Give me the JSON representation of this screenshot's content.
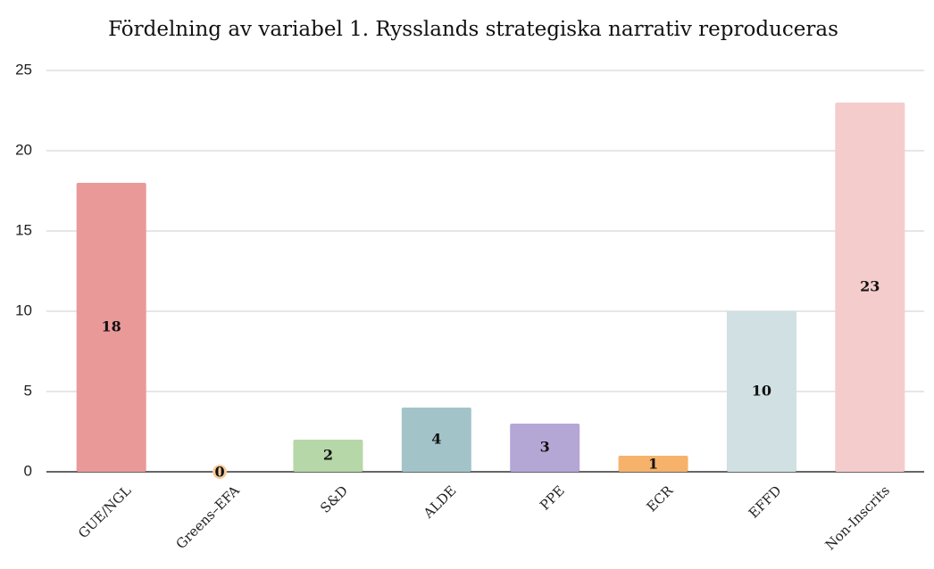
{
  "chart_data": {
    "type": "bar",
    "title": "Fördelning av variabel 1. Rysslands strategiska narrativ reproduceras",
    "categories": [
      "GUE/NGL",
      "Greens–EFA",
      "S&D",
      "ALDE",
      "PPE",
      "ECR",
      "EFFD",
      "Non-Inscrits"
    ],
    "values": [
      18,
      0,
      2,
      4,
      3,
      1,
      10,
      23
    ],
    "colors": [
      "#ea9999",
      "#f9cb9c",
      "#b6d7a8",
      "#a2c4c9",
      "#b4a7d6",
      "#f6b26b",
      "#d0e0e3",
      "#f4cccc"
    ],
    "ylim": [
      0,
      25
    ],
    "yticks": [
      0,
      5,
      10,
      15,
      20,
      25
    ],
    "grid": true
  }
}
